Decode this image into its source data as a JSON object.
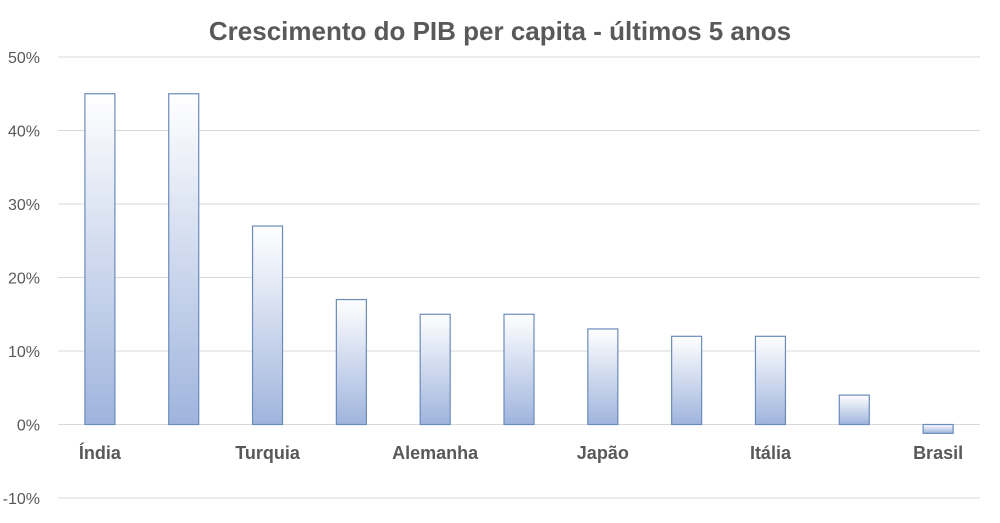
{
  "chart_data": {
    "type": "bar",
    "title": "Crescimento do PIB per capita - últimos 5 anos",
    "categories": [
      "Índia",
      "",
      "Turquia",
      "",
      "Alemanha",
      "",
      "Japão",
      "",
      "Itália",
      "",
      "Brasil"
    ],
    "values": [
      45,
      45,
      27,
      17,
      15,
      15,
      13,
      12,
      12,
      4,
      -1.2
    ],
    "value_unit": "%",
    "ylim": [
      -10,
      50
    ],
    "yticks": [
      -10,
      0,
      10,
      20,
      30,
      40,
      50
    ],
    "ytick_labels": [
      "-10%",
      "0%",
      "10%",
      "20%",
      "30%",
      "40%",
      "50%"
    ],
    "grid": true,
    "legend": "none",
    "colors": {
      "bar_top": "#ffffff",
      "bar_bottom": "#9fb4dd",
      "bar_stroke": "#6a8bbd",
      "grid": "#d9d9d9",
      "text": "#595959"
    }
  }
}
